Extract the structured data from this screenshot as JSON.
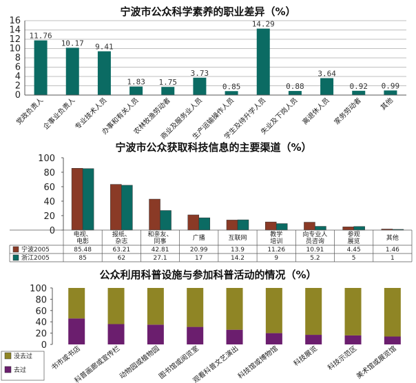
{
  "chart_data": [
    {
      "type": "bar",
      "title": "宁波市公众科学素养的职业差异（%）",
      "ylim": [
        0,
        16
      ],
      "yticks": [
        "0",
        "2",
        "4",
        "6",
        "8",
        "10",
        "12",
        "14",
        "16"
      ],
      "categories": [
        "党政负责人",
        "企事业负责人",
        "专业技术人员",
        "办事和有关人员",
        "农林牧渔劳动者",
        "商业及服务业人员",
        "生产运输操作人员",
        "学生及待升学人员",
        "失业及下岗人员",
        "离退休人员",
        "家务劳动者",
        "其他"
      ],
      "values": [
        11.76,
        10.17,
        9.41,
        1.83,
        1.75,
        3.73,
        0.85,
        14.29,
        0.88,
        3.64,
        0.92,
        0.99
      ],
      "data_labels": [
        "11.76",
        "10.17",
        "9.41",
        "1.83",
        "1.75",
        "3.73",
        "0.85",
        "14.29",
        "0.88",
        "3.64",
        "0.92",
        "0.99"
      ],
      "colors": {
        "bar": "#0b6b63",
        "grid": "#aaaaaa"
      },
      "grid": true
    },
    {
      "type": "bar",
      "title": "宁波市公众获取科技信息的主要渠道（%）",
      "ylim": [
        0,
        100
      ],
      "yticks": [
        "0",
        "20",
        "40",
        "60",
        "80",
        "100"
      ],
      "categories": [
        [
          "电视、",
          "电影"
        ],
        [
          "报纸、",
          "杂志"
        ],
        [
          "和亲友、",
          "同事"
        ],
        [
          "广播"
        ],
        [
          "互联网"
        ],
        [
          "教学",
          "培训"
        ],
        [
          "向专业人",
          "员咨询"
        ],
        [
          "参观",
          "展览"
        ],
        [
          "其他"
        ]
      ],
      "series": [
        {
          "name": "宁波2005",
          "values": [
            85.48,
            63.21,
            42.81,
            20.99,
            13.9,
            11.26,
            10.91,
            4.45,
            1.46
          ],
          "labels": [
            "85.48",
            "63.21",
            "42.81",
            "20.99",
            "13.9",
            "11.26",
            "10.91",
            "4.45",
            "1.46"
          ],
          "color": "#8a3a26"
        },
        {
          "name": "浙江2005",
          "values": [
            85,
            62,
            27.1,
            17,
            14.2,
            9,
            5.2,
            5,
            1
          ],
          "labels": [
            "85",
            "62",
            "27.1",
            "17",
            "14.2",
            "9",
            "5.2",
            "5",
            "1"
          ],
          "color": "#0b6b63"
        }
      ],
      "legend": "table-below",
      "grid": false
    },
    {
      "type": "bar",
      "stacked": true,
      "title": "公众利用科普设施与参加科普活动的情况（%）",
      "ylim": [
        0,
        100
      ],
      "yticks": [
        "0",
        "20",
        "40",
        "60",
        "80",
        "100"
      ],
      "categories": [
        "书市或书店",
        "科普画廊或宣传栏",
        "动物园或植物园",
        "图书馆或阅览室",
        "观看科普文艺演出",
        "科技馆或博物馆",
        "科技展览",
        "科技示范区",
        "美术馆或展览馆"
      ],
      "series": [
        {
          "name": "没去过",
          "values": [
            54,
            64,
            65,
            69,
            74,
            80,
            83,
            84,
            86
          ],
          "color": "#8f8525"
        },
        {
          "name": "去过",
          "values": [
            46,
            36,
            35,
            31,
            26,
            20,
            17,
            16,
            14
          ],
          "color": "#6b1e6e"
        }
      ],
      "legend": "bottom-left",
      "grid": false
    }
  ]
}
